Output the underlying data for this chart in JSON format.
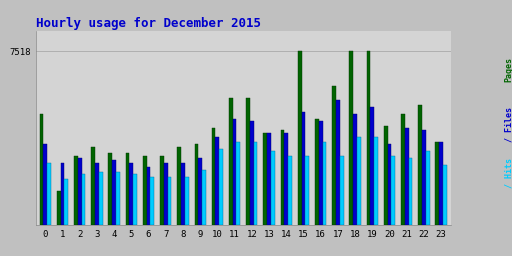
{
  "title": "Hourly usage for December 2015",
  "hours": [
    0,
    1,
    2,
    3,
    4,
    5,
    6,
    7,
    8,
    9,
    10,
    11,
    12,
    13,
    14,
    15,
    16,
    17,
    18,
    19,
    20,
    21,
    22,
    23
  ],
  "pages": [
    4800,
    1500,
    3000,
    3400,
    3100,
    3100,
    3000,
    3000,
    3400,
    3500,
    4200,
    5500,
    5500,
    4000,
    4100,
    7518,
    4600,
    6000,
    7518,
    7518,
    4300,
    4800,
    5200,
    3600
  ],
  "files": [
    3500,
    2700,
    2900,
    2700,
    2800,
    2700,
    2500,
    2700,
    2700,
    2900,
    3800,
    4600,
    4500,
    4000,
    4000,
    4900,
    4500,
    5400,
    4800,
    5100,
    3500,
    4200,
    4100,
    3600
  ],
  "hits": [
    2700,
    2000,
    2200,
    2300,
    2300,
    2200,
    2100,
    2100,
    2100,
    2400,
    3300,
    3600,
    3600,
    3200,
    3000,
    3000,
    3600,
    3000,
    3800,
    3800,
    3000,
    2900,
    3200,
    2600
  ],
  "color_pages": "#006400",
  "color_files": "#0000cc",
  "color_hits": "#00ccff",
  "bg_color": "#c0c0c0",
  "plot_bg": "#d4d4d4",
  "title_color": "#0000cc",
  "ytick_val": 7518,
  "ylim_max": 8400
}
